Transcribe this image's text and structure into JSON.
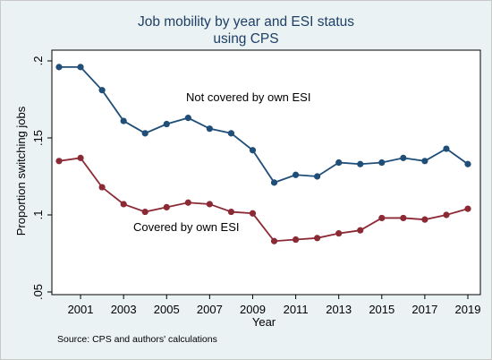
{
  "chart_data": {
    "type": "line",
    "title": [
      "Job mobility by year and ESI status",
      "using CPS"
    ],
    "xlabel": "Year",
    "ylabel": "Proportion switching jobs",
    "xlim": [
      2000,
      2019
    ],
    "ylim": [
      0.05,
      0.2
    ],
    "xticks": [
      "2001",
      "2003",
      "2005",
      "2007",
      "2009",
      "2011",
      "2013",
      "2015",
      "2017",
      "2019"
    ],
    "yticks": [
      ".05",
      ".1",
      ".15",
      ".2"
    ],
    "x": [
      2000,
      2001,
      2002,
      2003,
      2004,
      2005,
      2006,
      2007,
      2008,
      2009,
      2010,
      2011,
      2012,
      2013,
      2014,
      2015,
      2016,
      2017,
      2018,
      2019
    ],
    "series": [
      {
        "name": "Not covered by own ESI",
        "color": "#1f4e79",
        "values": [
          0.196,
          0.196,
          0.181,
          0.161,
          0.153,
          0.159,
          0.163,
          0.156,
          0.153,
          0.142,
          0.121,
          0.126,
          0.125,
          0.134,
          0.133,
          0.134,
          0.137,
          0.135,
          0.143,
          0.133
        ]
      },
      {
        "name": "Covered by own ESI",
        "color": "#8b2a35",
        "values": [
          0.135,
          0.137,
          0.118,
          0.107,
          0.102,
          0.105,
          0.108,
          0.107,
          0.102,
          0.101,
          0.083,
          0.084,
          0.085,
          0.088,
          0.09,
          0.098,
          0.098,
          0.097,
          0.1,
          0.104
        ]
      }
    ],
    "note": "Source: CPS and authors' calculations",
    "grid": false,
    "legend": "none"
  }
}
